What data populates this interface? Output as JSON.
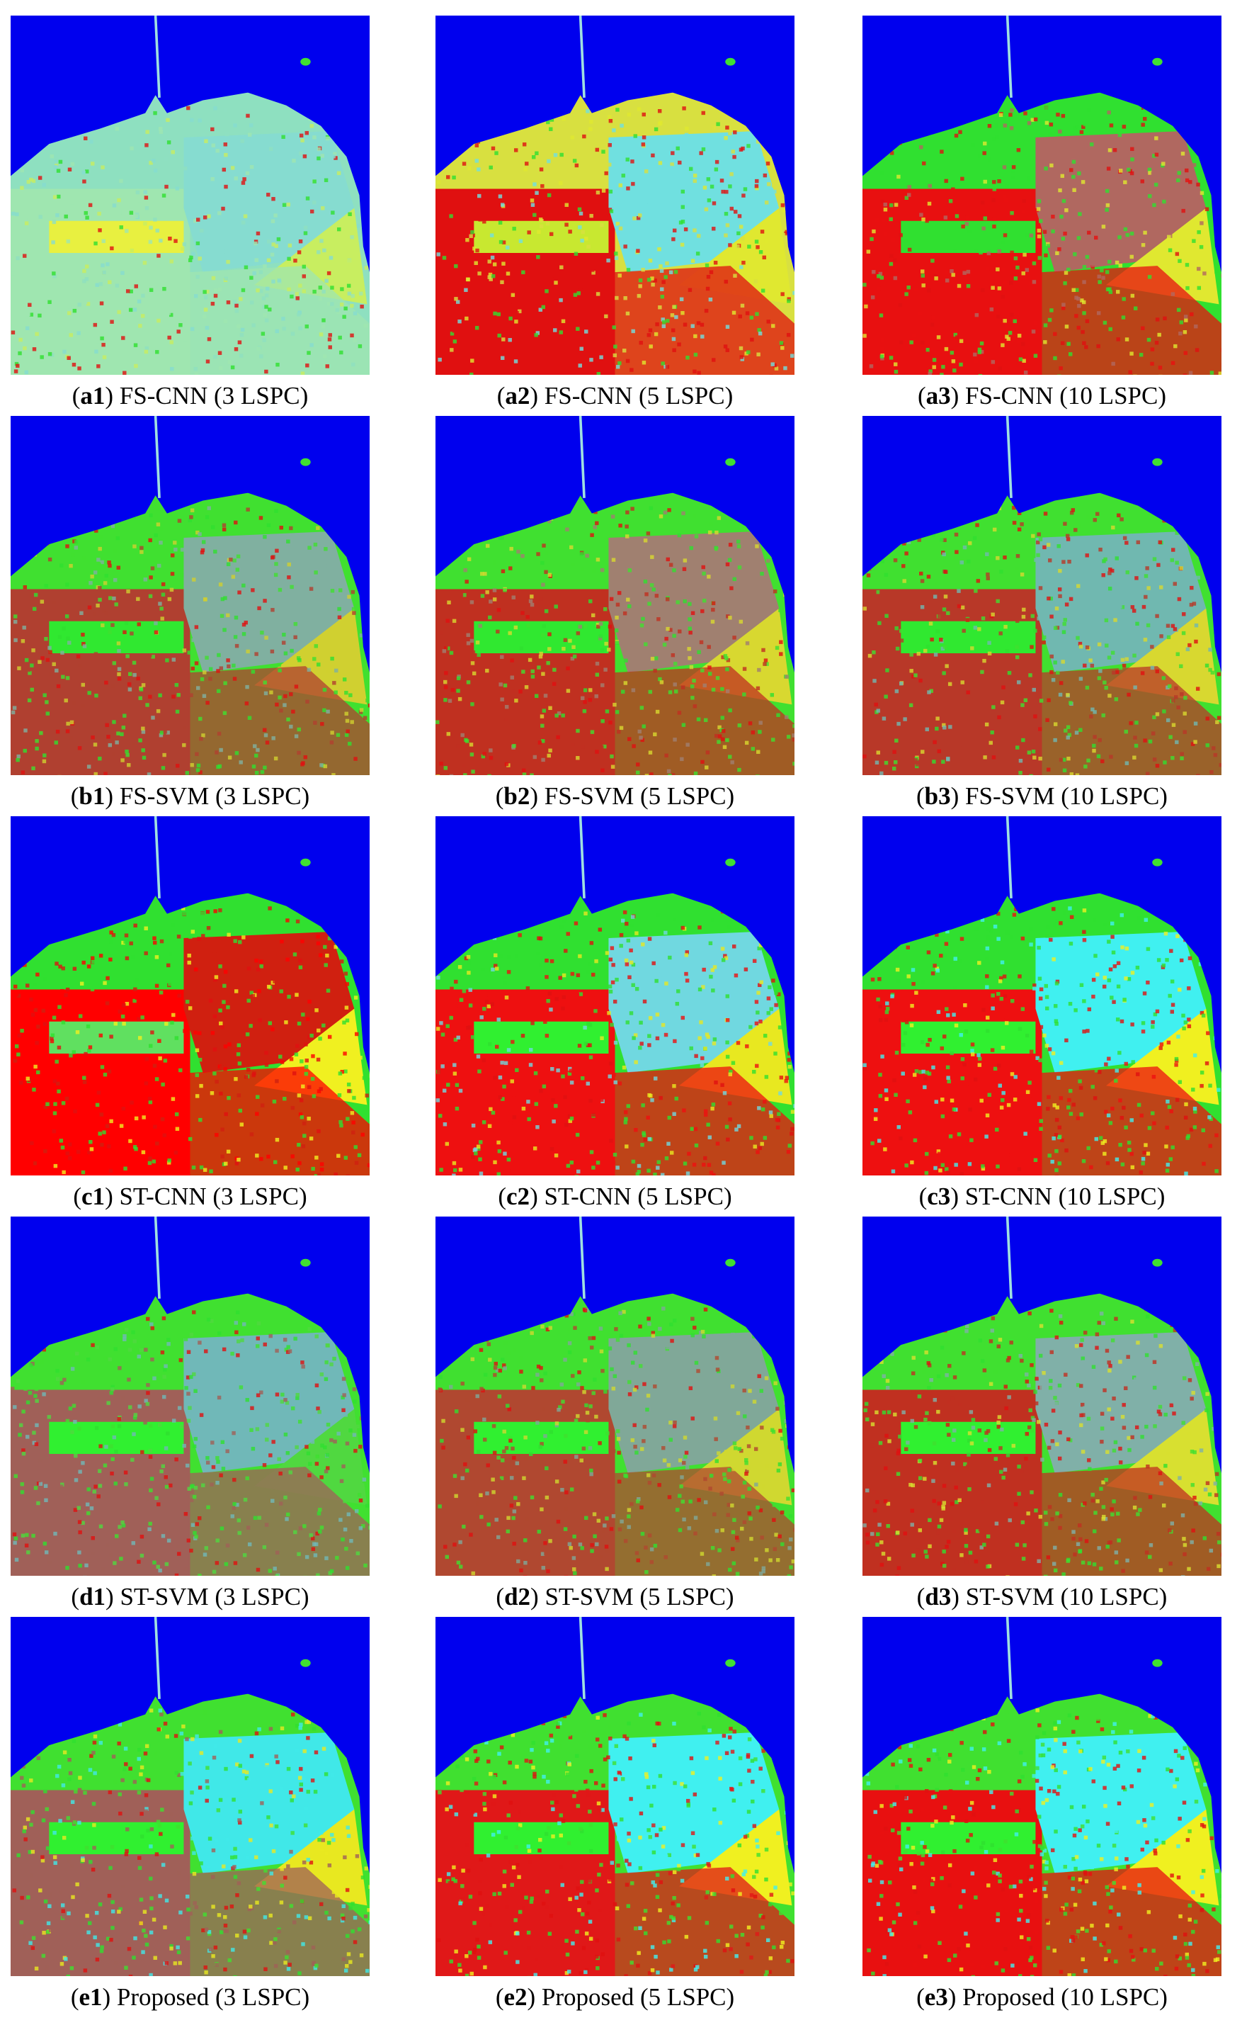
{
  "figure": {
    "panels": [
      {
        "caption": [
          "(",
          "a1",
          ") FS-CNN (3 LSPC)"
        ]
      },
      {
        "caption": [
          "(",
          "a2",
          ") FS-CNN (5 LSPC)"
        ]
      },
      {
        "caption": [
          "(",
          "a3",
          ") FS-CNN (10 LSPC)"
        ]
      },
      {
        "caption": [
          "(",
          "b1",
          ") FS-SVM (3 LSPC)"
        ]
      },
      {
        "caption": [
          "(",
          "b2",
          ") FS-SVM (5 LSPC)"
        ]
      },
      {
        "caption": [
          "(",
          "b3",
          ") FS-SVM (10 LSPC)"
        ]
      },
      {
        "caption": [
          "(",
          "c1",
          ") ST-CNN (3 LSPC)"
        ]
      },
      {
        "caption": [
          "(",
          "c2",
          ") ST-CNN (5 LSPC)"
        ]
      },
      {
        "caption": [
          "(",
          "c3",
          ") ST-CNN (10 LSPC)"
        ]
      },
      {
        "caption": [
          "(",
          "d1",
          ") ST-SVM (3 LSPC)"
        ]
      },
      {
        "caption": [
          "(",
          "d2",
          ") ST-SVM (5 LSPC)"
        ]
      },
      {
        "caption": [
          "(",
          "d3",
          ") ST-SVM (10 LSPC)"
        ]
      },
      {
        "caption": [
          "(",
          "e1",
          ") Proposed (3 LSPC)"
        ]
      },
      {
        "caption": [
          "(",
          "e2",
          ") Proposed (5 LSPC)"
        ]
      },
      {
        "caption": [
          "(",
          "e3",
          ") Proposed (10 LSPC)"
        ]
      }
    ]
  }
}
